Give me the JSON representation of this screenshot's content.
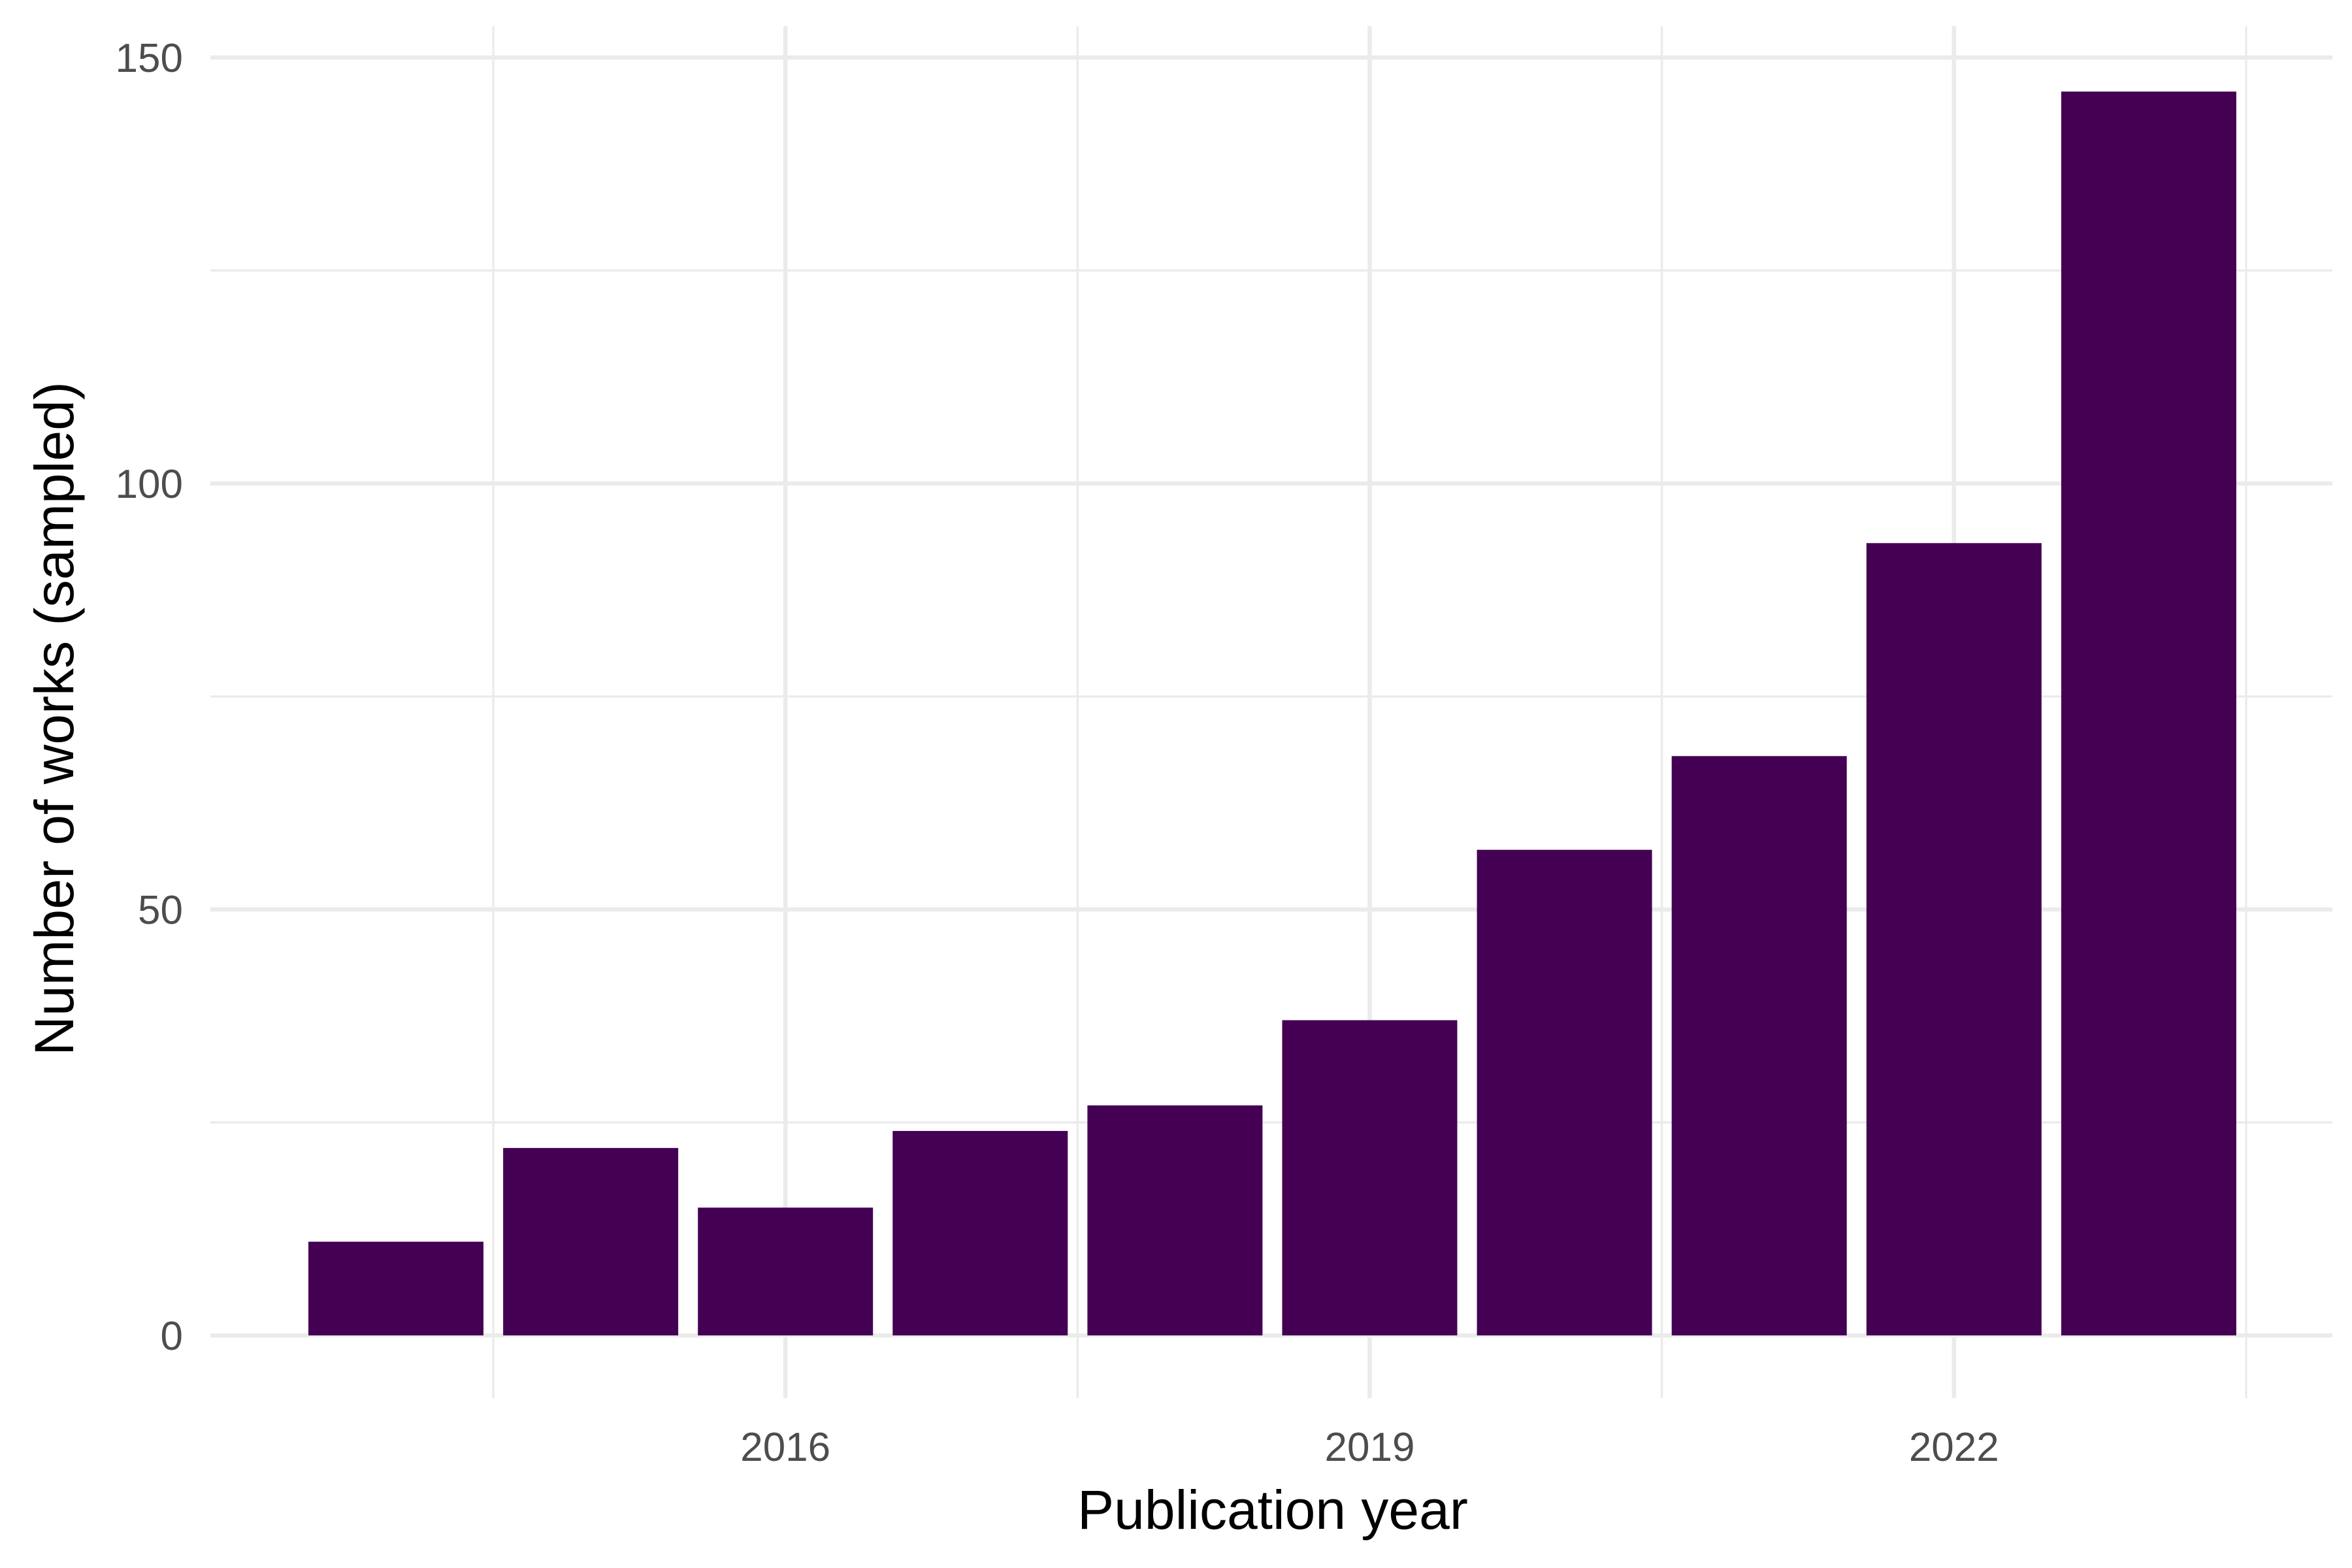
{
  "chart_data": {
    "type": "bar",
    "xlabel": "Publication year",
    "ylabel": "Number of works (sampled)",
    "categories": [
      2014,
      2015,
      2016,
      2017,
      2018,
      2019,
      2020,
      2021,
      2022,
      2023
    ],
    "values": [
      11,
      22,
      15,
      24,
      27,
      37,
      57,
      68,
      93,
      146
    ],
    "x_ticks": [
      2016,
      2019,
      2022
    ],
    "y_ticks": [
      0,
      50,
      100,
      150
    ],
    "ylim": [
      0,
      150
    ],
    "bar_color": "#440154",
    "grid": true,
    "legend": "none"
  }
}
